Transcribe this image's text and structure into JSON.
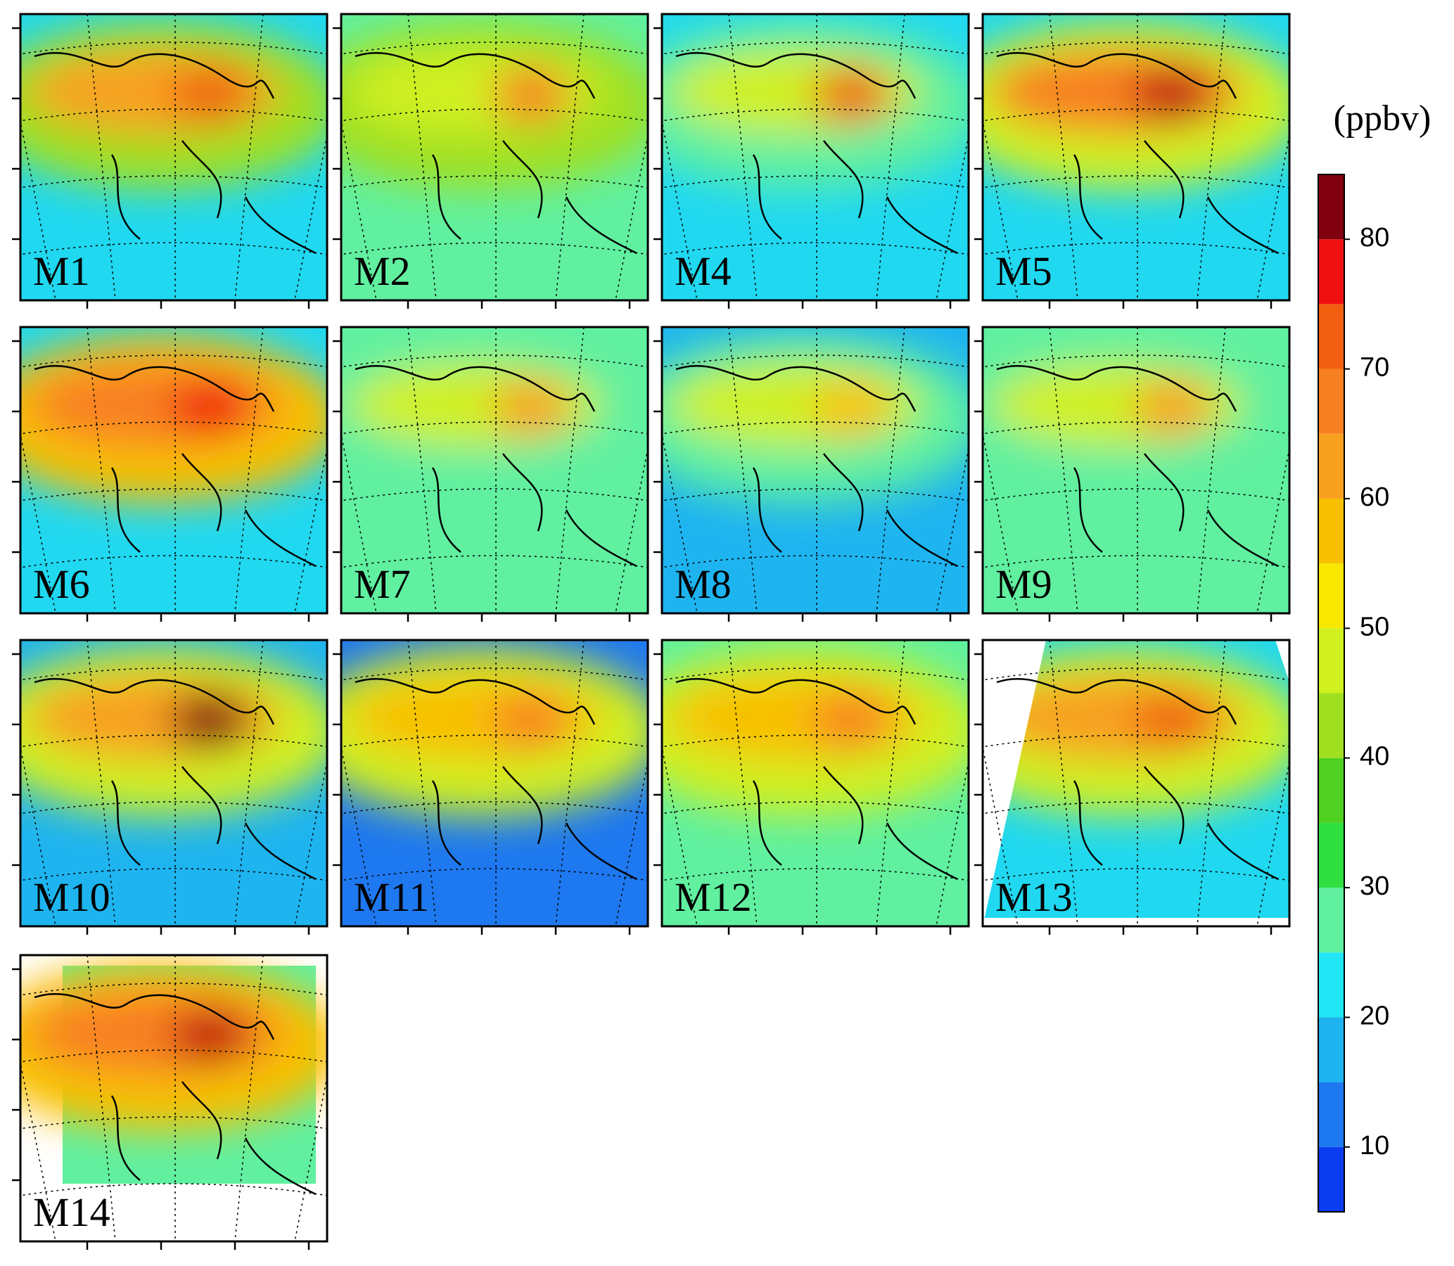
{
  "panels": [
    {
      "label": "M1"
    },
    {
      "label": "M2"
    },
    {
      "label": "M4"
    },
    {
      "label": "M5"
    },
    {
      "label": "M6"
    },
    {
      "label": "M7"
    },
    {
      "label": "M8"
    },
    {
      "label": "M9"
    },
    {
      "label": "M10"
    },
    {
      "label": "M11"
    },
    {
      "label": "M12"
    },
    {
      "label": "M13"
    },
    {
      "label": "M14"
    }
  ],
  "colorbar": {
    "unit": "(ppbv)",
    "range": [
      5,
      85
    ],
    "levels": [
      5,
      10,
      15,
      20,
      25,
      30,
      35,
      40,
      45,
      50,
      55,
      60,
      65,
      70,
      75,
      80,
      85
    ],
    "colors": [
      "#0a3cf0",
      "#1e78f0",
      "#1eb4f0",
      "#20e6f5",
      "#60f0a0",
      "#30e040",
      "#50d020",
      "#a0e020",
      "#d0f020",
      "#f8e800",
      "#f8c000",
      "#f8a020",
      "#f88020",
      "#f06010",
      "#f01010",
      "#800010"
    ],
    "ticks": [
      10,
      20,
      30,
      40,
      50,
      60,
      70,
      80
    ]
  }
}
